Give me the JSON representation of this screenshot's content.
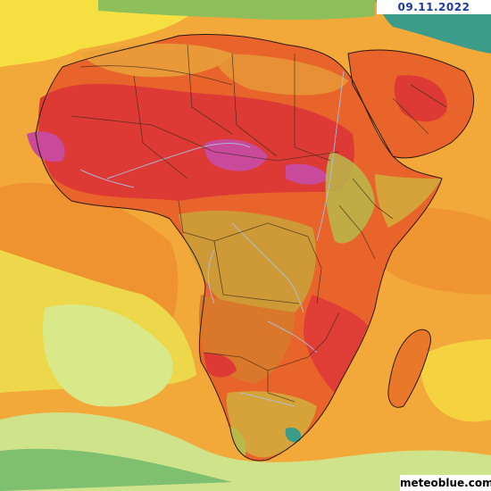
{
  "map": {
    "date_label": "09.11.2022",
    "brand_label": "meteoblue.com",
    "region": "Africa",
    "colors": {
      "ocean_warm": "#f2a93a",
      "ocean_hot": "#ee8d2e",
      "ocean_cool": "#ecd84a",
      "ocean_cold": "#d9e98a",
      "land_hot": "#e9642a",
      "land_very_hot": "#dd3a36",
      "land_extreme": "#c94a9a",
      "land_mild": "#c9a23a",
      "land_cool": "#8fbf5a",
      "land_cold": "#3c9c8a",
      "rivers": "#a9c3e6",
      "borders": "#3a2a1a"
    }
  }
}
